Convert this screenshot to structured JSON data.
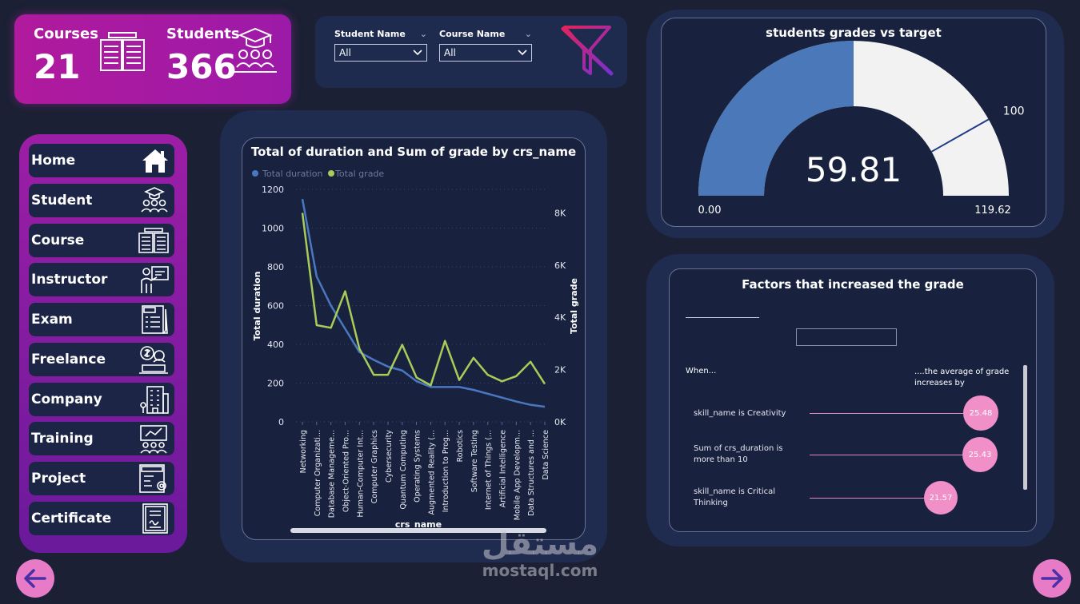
{
  "kpis": {
    "courses_label": "Courses",
    "courses_value": "21",
    "students_label": "Students",
    "students_value": "366"
  },
  "filters": {
    "student_name_label": "Student Name",
    "student_name_value": "All",
    "course_name_label": "Course Name",
    "course_name_value": "All"
  },
  "nav": {
    "items": [
      {
        "label": "Home",
        "icon": "house-icon"
      },
      {
        "label": "Student",
        "icon": "students-icon"
      },
      {
        "label": "Course",
        "icon": "book-icon"
      },
      {
        "label": "Instructor",
        "icon": "instructor-icon"
      },
      {
        "label": "Exam",
        "icon": "exam-icon"
      },
      {
        "label": "Freelance",
        "icon": "freelance-icon"
      },
      {
        "label": "Company",
        "icon": "building-icon"
      },
      {
        "label": "Training",
        "icon": "training-icon"
      },
      {
        "label": "Project",
        "icon": "project-icon"
      },
      {
        "label": "Certificate",
        "icon": "certificate-icon"
      }
    ]
  },
  "chart_data": [
    {
      "type": "line",
      "title": "Total of duration and Sum of grade by crs_name",
      "xlabel": "crs_name",
      "ylabel": "Total duration",
      "y2label": "Total grade",
      "legend_position": "top-left",
      "ylim": [
        0,
        1200
      ],
      "y2lim": [
        0,
        8900
      ],
      "yticks": [
        "0",
        "200",
        "400",
        "600",
        "800",
        "1000",
        "1200"
      ],
      "y2ticks": [
        "0K",
        "2K",
        "4K",
        "6K",
        "8K"
      ],
      "grid": true,
      "categories": [
        "Networking",
        "Computer Organizati...",
        "Database Manageme...",
        "Object-Oriented Pro...",
        "Human-Computer Int...",
        "Computer Graphics",
        "Cybersecurity",
        "Quantum Computing",
        "Operating Systems",
        "Augmented Reality (...",
        "Introduction to Prog...",
        "Robotics",
        "Software Testing",
        "Internet of Things (...",
        "Artificial Intelligence",
        "Mobile App Developm...",
        "Data Structures and ...",
        "Data Science"
      ],
      "series": [
        {
          "name": "Total duration",
          "color": "#4a78c0",
          "axis": "left",
          "values": [
            1150,
            750,
            600,
            480,
            360,
            320,
            285,
            265,
            210,
            180,
            180,
            180,
            165,
            145,
            125,
            105,
            88,
            78
          ]
        },
        {
          "name": "Total grade",
          "color": "#a8cc58",
          "axis": "right",
          "values": [
            8000,
            3700,
            3600,
            5000,
            2800,
            1800,
            1800,
            2950,
            1700,
            1400,
            3100,
            1600,
            2450,
            1800,
            1550,
            1750,
            2300,
            1450
          ]
        }
      ]
    },
    {
      "type": "gauge",
      "title": "students grades vs target",
      "value": 59.81,
      "value_label": "59.81",
      "min": 0,
      "max": 119.62,
      "min_label": "0.00",
      "max_label": "119.62",
      "target": 100,
      "target_label": "100",
      "fill_color": "#4a78b8",
      "track_color": "#f2f2f2"
    }
  ],
  "factors": {
    "title": "Factors that increased the grade",
    "when_label": "When...",
    "avg_label": "....the average of grade increases by",
    "rows": [
      {
        "text": "skill_name is Creativity",
        "value": "25.48"
      },
      {
        "text": "Sum of crs_duration is more than 10",
        "value": "25.43"
      },
      {
        "text": "skill_name is Critical Thinking",
        "value": "21.57"
      }
    ]
  },
  "watermark": {
    "arabic": "مستقل",
    "latin": "mostaql.com"
  }
}
